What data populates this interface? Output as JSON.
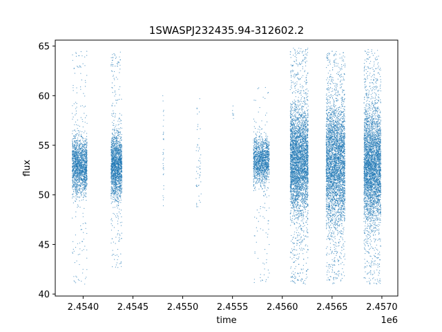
{
  "chart_data": {
    "type": "scatter",
    "title": "1SWASPJ232435.94-312602.2",
    "xlabel": "time",
    "ylabel": "flux",
    "x_offset_label": "1e6",
    "xlim": [
      2453720,
      2457160
    ],
    "ylim": [
      39.8,
      65.6
    ],
    "x_ticks": [
      2.454,
      2.4545,
      2.455,
      2.4555,
      2.456,
      2.4565,
      2.457
    ],
    "x_tick_labels": [
      "2.4540",
      "2.4545",
      "2.4550",
      "2.4555",
      "2.4560",
      "2.4565",
      "2.4570"
    ],
    "y_ticks": [
      40,
      45,
      50,
      55,
      60,
      65
    ],
    "y_tick_labels": [
      "40",
      "45",
      "50",
      "55",
      "60",
      "65"
    ],
    "grid": false,
    "marker_color": "#1f77b4",
    "marker": "point",
    "series": [
      {
        "x": [
          2453900,
          2453920,
          2453945,
          2453970,
          2453990,
          2454010,
          2454030,
          2453955,
          2453980,
          2454000,
          2454290,
          2454310,
          2454330,
          2454350,
          2454370,
          2454390,
          2454300,
          2454340,
          2454380,
          2454800,
          2454805,
          2455180,
          2455185,
          2455150,
          2455140,
          2455500,
          2455510,
          2455720,
          2455760,
          2455800,
          2455840,
          2455860,
          2455780,
          2455820,
          2456080,
          2456110,
          2456140,
          2456170,
          2456200,
          2456230,
          2456250,
          2456120,
          2456190,
          2456450,
          2456480,
          2456510,
          2456540,
          2456570,
          2456600,
          2456620,
          2456500,
          2456560,
          2456830,
          2456860,
          2456890,
          2456920,
          2456950,
          2456980,
          2456870,
          2456940
        ],
        "y": [
          52.6,
          53.4,
          51.8,
          54.2,
          52.9,
          51.5,
          53.6,
          50.2,
          56.1,
          47.8,
          53.1,
          51.2,
          54.8,
          52.4,
          50.6,
          53.9,
          57.9,
          48.1,
          55.5,
          60.0,
          49.5,
          53.2,
          50.1,
          55.0,
          49.0,
          58.5,
          57.7,
          53.6,
          52.1,
          54.3,
          51.9,
          53.0,
          48.6,
          56.3,
          54.1,
          51.6,
          55.8,
          50.2,
          53.4,
          56.9,
          49.8,
          61.2,
          45.3,
          53.3,
          50.8,
          55.6,
          52.2,
          49.4,
          54.7,
          51.9,
          58.4,
          46.2,
          52.9,
          55.3,
          50.4,
          53.8,
          49.7,
          54.9,
          59.8,
          46.9
        ]
      }
    ],
    "clusters": [
      {
        "x_range": [
          2453890,
          2454040
        ],
        "core": [
          50.0,
          56.0
        ],
        "outer": [
          41.0,
          64.5
        ],
        "core_points": 1600,
        "outer_points": 180
      },
      {
        "x_range": [
          2454280,
          2454390
        ],
        "core": [
          49.5,
          56.5
        ],
        "outer": [
          42.5,
          64.5
        ],
        "core_points": 1600,
        "outer_points": 200
      },
      {
        "x_range": [
          2454800,
          2454810
        ],
        "core": [
          48.5,
          60.0
        ],
        "outer": [
          48.5,
          62.2
        ],
        "core_points": 25,
        "outer_points": 5
      },
      {
        "x_range": [
          2455135,
          2455185
        ],
        "core": [
          48.8,
          59.5
        ],
        "outer": [
          48.8,
          60.5
        ],
        "core_points": 40,
        "outer_points": 5
      },
      {
        "x_range": [
          2455500,
          2455515
        ],
        "core": [
          57.5,
          59.0
        ],
        "outer": [
          57.5,
          59.0
        ],
        "core_points": 5,
        "outer_points": 0
      },
      {
        "x_range": [
          2455710,
          2455870
        ],
        "core": [
          51.0,
          56.0
        ],
        "outer": [
          41.0,
          61.0
        ],
        "core_points": 1300,
        "outer_points": 120
      },
      {
        "x_range": [
          2456080,
          2456260
        ],
        "core": [
          48.0,
          59.0
        ],
        "outer": [
          41.0,
          64.8
        ],
        "core_points": 3000,
        "outer_points": 700
      },
      {
        "x_range": [
          2456440,
          2456630
        ],
        "core": [
          47.0,
          59.5
        ],
        "outer": [
          41.0,
          64.5
        ],
        "core_points": 3000,
        "outer_points": 700
      },
      {
        "x_range": [
          2456820,
          2456990
        ],
        "core": [
          47.0,
          59.0
        ],
        "outer": [
          41.0,
          64.8
        ],
        "core_points": 3000,
        "outer_points": 700
      }
    ]
  }
}
